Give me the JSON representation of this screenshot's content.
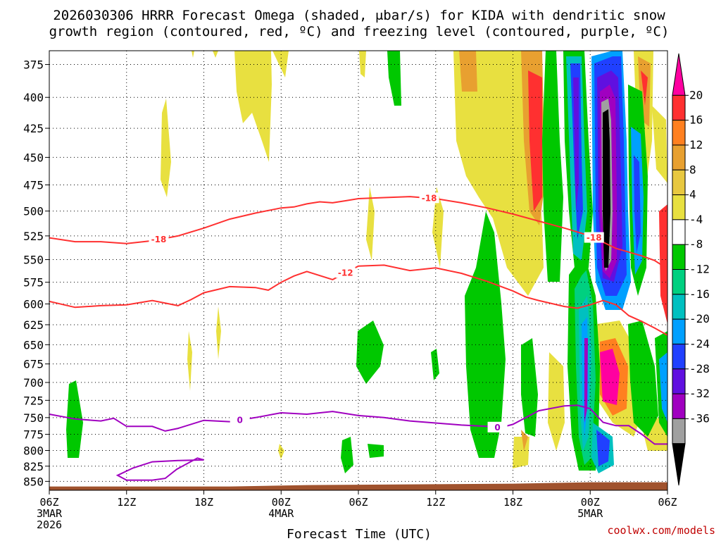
{
  "chart_data": {
    "type": "heatmap",
    "title_line1": "2026030306 HRRR Forecast Omega (shaded, μbar/s) for KIDA with dendritic snow",
    "title_line2": "growth region (contoured, red, ºC) and freezing level (contoured, purple, ºC)",
    "xlabel": "Forecast Time (UTC)",
    "credit": "coolwx.com/models",
    "x_hours_range": [
      0,
      48
    ],
    "y_range_hpa": [
      865,
      365
    ],
    "y_ticks": [
      375,
      400,
      425,
      450,
      475,
      500,
      525,
      550,
      575,
      600,
      625,
      650,
      675,
      700,
      725,
      750,
      775,
      800,
      825,
      850
    ],
    "x_ticks": [
      {
        "hour": 0,
        "line1": "06Z",
        "line2": "3MAR",
        "line3": "2026"
      },
      {
        "hour": 6,
        "line1": "12Z",
        "line2": "",
        "line3": ""
      },
      {
        "hour": 12,
        "line1": "18Z",
        "line2": "",
        "line3": ""
      },
      {
        "hour": 18,
        "line1": "00Z",
        "line2": "4MAR",
        "line3": ""
      },
      {
        "hour": 24,
        "line1": "06Z",
        "line2": "",
        "line3": ""
      },
      {
        "hour": 30,
        "line1": "12Z",
        "line2": "",
        "line3": ""
      },
      {
        "hour": 36,
        "line1": "18Z",
        "line2": "",
        "line3": ""
      },
      {
        "hour": 42,
        "line1": "00Z",
        "line2": "5MAR",
        "line3": ""
      },
      {
        "hour": 48,
        "line1": "06Z",
        "line2": "",
        "line3": ""
      }
    ],
    "colorbar": {
      "labels": [
        "20",
        "16",
        "12",
        "8",
        "4",
        "-4",
        "-8",
        "-12",
        "-16",
        "-20",
        "-24",
        "-28",
        "-32",
        "-36"
      ],
      "bins": [
        {
          "color": "#ff00a0"
        },
        {
          "color": "#ff3030"
        },
        {
          "color": "#ff8020"
        },
        {
          "color": "#e8a030"
        },
        {
          "color": "#e8c840"
        },
        {
          "color": "#e8e040"
        },
        {
          "color": "#ffffff"
        },
        {
          "color": "#00c800"
        },
        {
          "color": "#00d080"
        },
        {
          "color": "#00c0c0"
        },
        {
          "color": "#00a0ff"
        },
        {
          "color": "#2040ff"
        },
        {
          "color": "#6010e0"
        },
        {
          "color": "#a000c0"
        },
        {
          "color": "#a0a0a0"
        },
        {
          "color": "#000000"
        }
      ]
    },
    "terrain_hpa": 855,
    "contours": [
      {
        "name": "minus18",
        "label": "-18",
        "color": "#ff3030",
        "points": [
          [
            0,
            527
          ],
          [
            2,
            531
          ],
          [
            4,
            531
          ],
          [
            6,
            533
          ],
          [
            8,
            530
          ],
          [
            10,
            525
          ],
          [
            12,
            517
          ],
          [
            14,
            508
          ],
          [
            16,
            502
          ],
          [
            18,
            497
          ],
          [
            19,
            496
          ],
          [
            20,
            493
          ],
          [
            21,
            491
          ],
          [
            22,
            492
          ],
          [
            23,
            490
          ],
          [
            24,
            488
          ],
          [
            26,
            487
          ],
          [
            28,
            486
          ],
          [
            30,
            488
          ],
          [
            32,
            492
          ],
          [
            34,
            497
          ],
          [
            36,
            503
          ],
          [
            38,
            510
          ],
          [
            40,
            517
          ],
          [
            42,
            525
          ],
          [
            44,
            538
          ],
          [
            46,
            546
          ],
          [
            47,
            551
          ],
          [
            48,
            560
          ]
        ],
        "label_hours": [
          8.5,
          29.5,
          42.3
        ]
      },
      {
        "name": "minus12",
        "label": "-12",
        "color": "#ff3030",
        "points": [
          [
            0,
            597
          ],
          [
            2,
            604
          ],
          [
            4,
            602
          ],
          [
            6,
            601
          ],
          [
            8,
            596
          ],
          [
            10,
            602
          ],
          [
            11,
            595
          ],
          [
            12,
            587
          ],
          [
            14,
            580
          ],
          [
            16,
            581
          ],
          [
            17,
            584
          ],
          [
            18,
            575
          ],
          [
            19,
            568
          ],
          [
            20,
            563
          ],
          [
            22,
            572
          ],
          [
            24,
            557
          ],
          [
            26,
            556
          ],
          [
            28,
            562
          ],
          [
            30,
            559
          ],
          [
            32,
            565
          ],
          [
            34,
            574
          ],
          [
            36,
            585
          ],
          [
            37,
            592
          ],
          [
            38,
            596
          ],
          [
            40,
            603
          ],
          [
            41,
            605
          ],
          [
            42,
            601
          ],
          [
            43,
            596
          ],
          [
            44,
            601
          ],
          [
            45,
            614
          ],
          [
            46,
            621
          ],
          [
            47,
            629
          ],
          [
            48,
            638
          ]
        ],
        "label_hours": [
          23
        ]
      },
      {
        "name": "freezing",
        "label": "0",
        "color": "#a000c0",
        "points": [
          [
            0,
            745
          ],
          [
            2,
            752
          ],
          [
            4,
            755
          ],
          [
            5,
            751
          ],
          [
            6,
            763
          ],
          [
            8,
            763
          ],
          [
            9,
            770
          ],
          [
            10,
            766
          ],
          [
            12,
            754
          ],
          [
            14,
            756
          ],
          [
            16,
            750
          ],
          [
            18,
            743
          ],
          [
            20,
            745
          ],
          [
            22,
            741
          ],
          [
            24,
            747
          ],
          [
            26,
            750
          ],
          [
            28,
            755
          ],
          [
            30,
            758
          ],
          [
            32,
            761
          ],
          [
            34,
            763
          ],
          [
            35,
            765
          ],
          [
            36,
            760
          ],
          [
            38,
            740
          ],
          [
            40,
            733
          ],
          [
            41,
            732
          ],
          [
            42,
            737
          ],
          [
            43,
            757
          ],
          [
            44,
            762
          ],
          [
            45,
            762
          ],
          [
            46,
            775
          ],
          [
            47,
            790
          ],
          [
            48,
            790
          ]
        ],
        "label_hours": [
          14.8,
          34.8
        ]
      },
      {
        "name": "freezing-loop",
        "label": "",
        "color": "#a000c0",
        "closed": true,
        "points": [
          [
            5.3,
            840
          ],
          [
            6,
            848
          ],
          [
            8,
            848
          ],
          [
            9,
            845
          ],
          [
            9.9,
            830
          ],
          [
            11.5,
            812
          ],
          [
            12,
            815
          ],
          [
            10,
            816
          ],
          [
            8,
            818
          ],
          [
            6.5,
            828
          ],
          [
            5.3,
            840
          ]
        ],
        "label_hours": []
      }
    ]
  }
}
